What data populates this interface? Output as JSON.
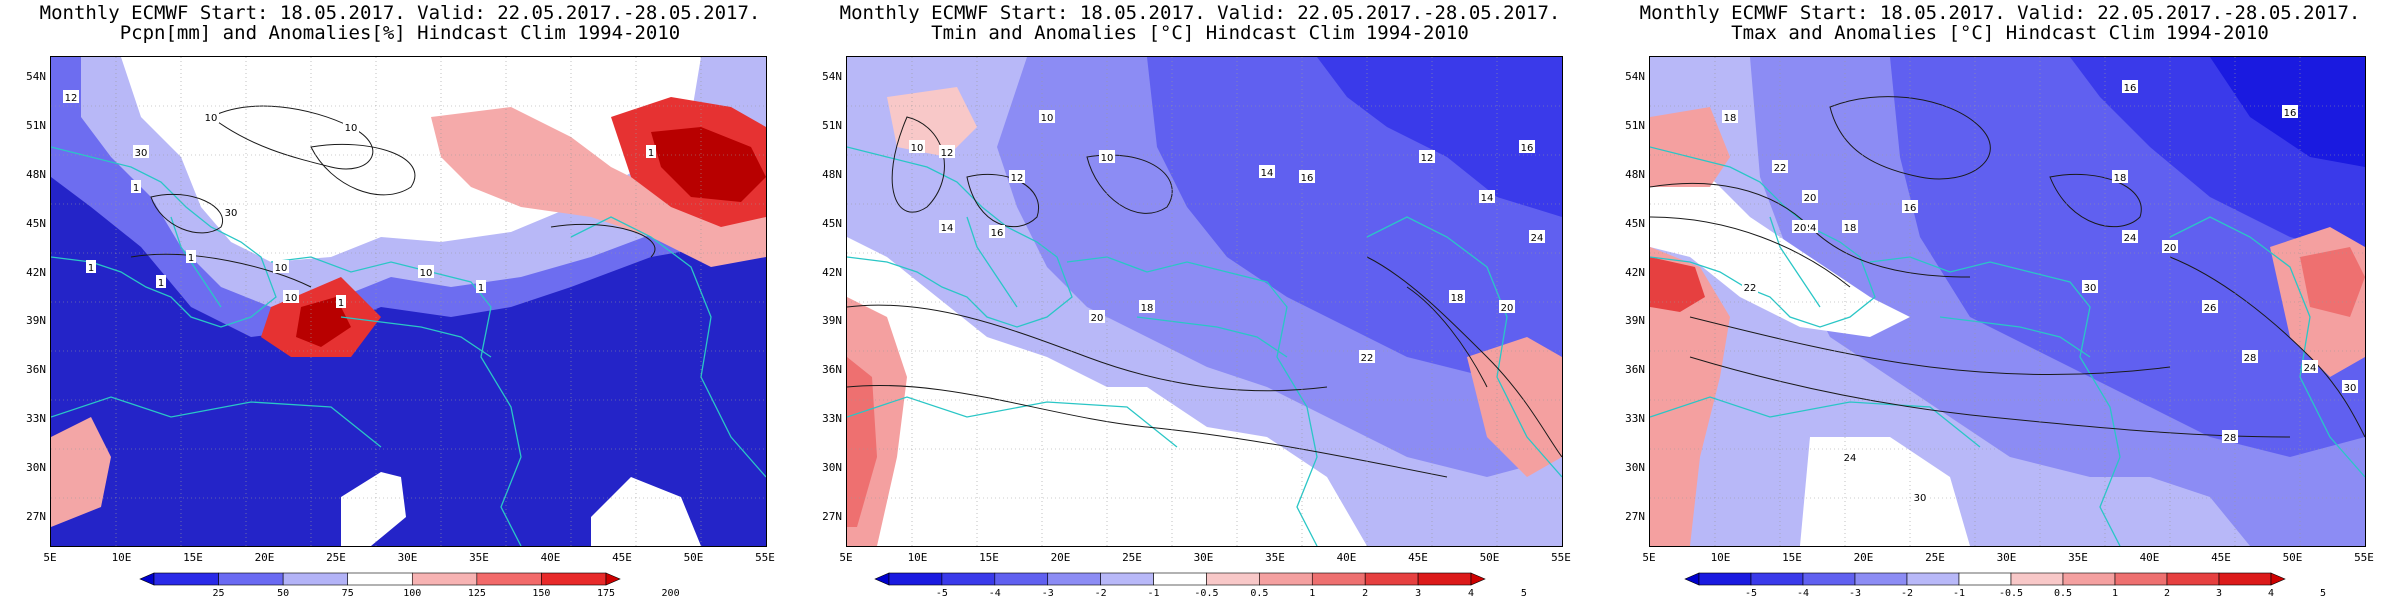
{
  "panels": [
    {
      "title_line1": "Monthly ECMWF Start: 18.05.2017. Valid: 22.05.2017.-28.05.2017.",
      "title_line2": "Pcpn[mm] and Anomalies[%] Hindcast Clim 1994-2010",
      "field": "precipitation",
      "colorbar": {
        "labels": [
          "25",
          "50",
          "75",
          "100",
          "125",
          "150",
          "175",
          "200"
        ],
        "colors": [
          "#0000cc",
          "#2a2ae8",
          "#6a6af2",
          "#b3b3f7",
          "#ffffff",
          "#f7b3b3",
          "#f26a6a",
          "#e82a2a",
          "#cc0000"
        ]
      },
      "contour_labels": [
        "10",
        "30",
        "10",
        "30",
        "1",
        "1",
        "1",
        "1",
        "10",
        "10",
        "1",
        "10",
        "1",
        "1",
        "12"
      ]
    },
    {
      "title_line1": "Monthly ECMWF Start: 18.05.2017. Valid: 22.05.2017.-28.05.2017.",
      "title_line2": "Tmin and Anomalies [°C] Hindcast Clim 1994-2010",
      "field": "tmin",
      "colorbar": {
        "labels": [
          "-5",
          "-4",
          "-3",
          "-2",
          "-1",
          "-0.5",
          "0.5",
          "1",
          "2",
          "3",
          "4",
          "5"
        ],
        "colors": [
          "#0000cc",
          "#1a1ae0",
          "#3a3aea",
          "#6060f0",
          "#8c8cf4",
          "#b8b8f8",
          "#ffffff",
          "#f8c8c8",
          "#f4a0a0",
          "#ee7070",
          "#e64040",
          "#dc1a1a",
          "#cc0000"
        ]
      },
      "contour_labels": [
        "10",
        "12",
        "14",
        "16",
        "12",
        "10",
        "14",
        "16",
        "18",
        "20",
        "22",
        "18",
        "20",
        "24",
        "16",
        "14",
        "12",
        "10"
      ]
    },
    {
      "title_line1": "Monthly ECMWF Start: 18.05.2017. Valid: 22.05.2017.-28.05.2017.",
      "title_line2": "Tmax and Anomalies [°C] Hindcast Clim 1994-2010",
      "field": "tmax",
      "colorbar": {
        "labels": [
          "-5",
          "-4",
          "-3",
          "-2",
          "-1",
          "-0.5",
          "0.5",
          "1",
          "2",
          "3",
          "4",
          "5"
        ],
        "colors": [
          "#0000cc",
          "#1a1ae0",
          "#3a3aea",
          "#6060f0",
          "#8c8cf4",
          "#b8b8f8",
          "#ffffff",
          "#f8c8c8",
          "#f4a0a0",
          "#ee7070",
          "#e64040",
          "#dc1a1a",
          "#cc0000"
        ]
      },
      "contour_labels": [
        "18",
        "16",
        "16",
        "18",
        "22",
        "20",
        "24",
        "22",
        "20",
        "18",
        "16",
        "24",
        "20",
        "26",
        "28",
        "30",
        "24",
        "30",
        "28",
        "24",
        "30"
      ]
    }
  ],
  "lat_labels": [
    "54N",
    "51N",
    "48N",
    "45N",
    "42N",
    "39N",
    "36N",
    "33N",
    "30N",
    "27N"
  ],
  "lon_labels": [
    "5E",
    "10E",
    "15E",
    "20E",
    "25E",
    "30E",
    "35E",
    "40E",
    "45E",
    "50E",
    "55E"
  ]
}
